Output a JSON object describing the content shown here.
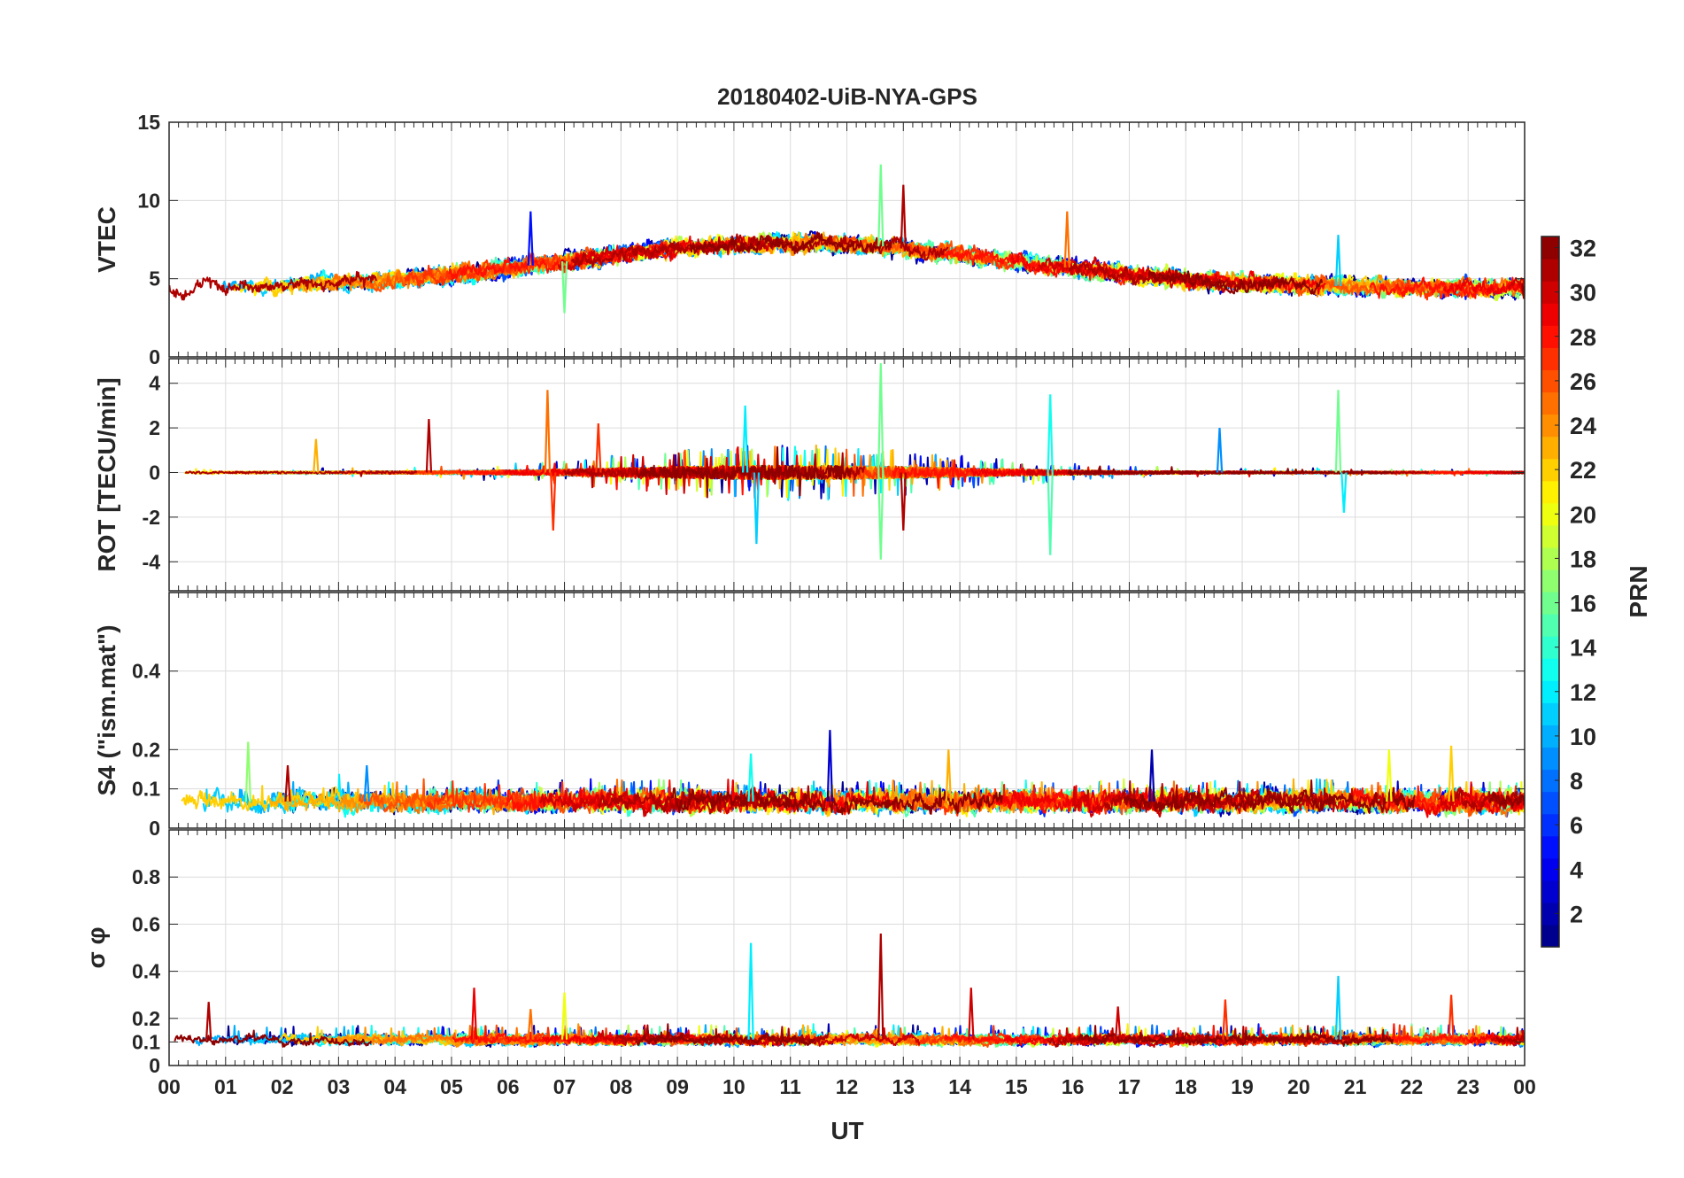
{
  "chart_data": {
    "type": "line",
    "title": "20180402-UiB-NYA-GPS",
    "xlabel": "UT",
    "x_tick_labels": [
      "00",
      "01",
      "02",
      "03",
      "04",
      "05",
      "06",
      "07",
      "08",
      "09",
      "10",
      "11",
      "12",
      "13",
      "14",
      "15",
      "16",
      "17",
      "18",
      "19",
      "20",
      "21",
      "22",
      "23",
      "00"
    ],
    "xlim": [
      0,
      24
    ],
    "panels": [
      {
        "name": "vtec",
        "ylabel": "VTEC",
        "ylim": [
          0,
          15
        ],
        "yticks": [
          0,
          5,
          10,
          15
        ],
        "ytick_labels": [
          "0",
          "5",
          "10",
          "15"
        ],
        "baseline": 4.4,
        "day_amp": 2.9,
        "noise": 0.45,
        "spike_scale": 1.8,
        "spikes": [
          {
            "t": 12.6,
            "v": 12.3,
            "prn": 16
          },
          {
            "t": 13.0,
            "v": 11.0,
            "prn": 31
          },
          {
            "t": 15.9,
            "v": 9.3,
            "prn": 25
          },
          {
            "t": 6.4,
            "v": 9.3,
            "prn": 5
          },
          {
            "t": 20.7,
            "v": 7.8,
            "prn": 11
          },
          {
            "t": 7.0,
            "v": 2.8,
            "prn": 16
          }
        ]
      },
      {
        "name": "rot",
        "ylabel": "ROT [TECU/min]",
        "ylim": [
          -5.3,
          5.1
        ],
        "yticks": [
          -4,
          -2,
          0,
          2,
          4
        ],
        "ytick_labels": [
          "-4",
          "-2",
          "0",
          "2",
          "4"
        ],
        "baseline": 0,
        "day_amp": 0,
        "noise": 0.12,
        "spike_scale": 1.5,
        "spikes": [
          {
            "t": 12.6,
            "v": 4.9,
            "prn": 16
          },
          {
            "t": 12.6,
            "v": -3.9,
            "prn": 16
          },
          {
            "t": 6.7,
            "v": 3.7,
            "prn": 25
          },
          {
            "t": 6.8,
            "v": -2.6,
            "prn": 27
          },
          {
            "t": 15.6,
            "v": 3.5,
            "prn": 13
          },
          {
            "t": 15.6,
            "v": -3.7,
            "prn": 15
          },
          {
            "t": 20.7,
            "v": 3.7,
            "prn": 16
          },
          {
            "t": 20.8,
            "v": -1.8,
            "prn": 12
          },
          {
            "t": 10.2,
            "v": 3.0,
            "prn": 12
          },
          {
            "t": 10.4,
            "v": -3.2,
            "prn": 11
          },
          {
            "t": 4.6,
            "v": 2.4,
            "prn": 31
          },
          {
            "t": 13.0,
            "v": -2.6,
            "prn": 31
          },
          {
            "t": 7.6,
            "v": 2.2,
            "prn": 27
          },
          {
            "t": 18.6,
            "v": 2.0,
            "prn": 9
          },
          {
            "t": 2.6,
            "v": 1.5,
            "prn": 23
          }
        ]
      },
      {
        "name": "s4",
        "ylabel": "S4 (\"ism.mat\")",
        "ylim": [
          0,
          0.6
        ],
        "yticks": [
          0,
          0.1,
          0.2,
          0.4
        ],
        "ytick_labels": [
          "0",
          "0.1",
          "0.2",
          "0.4"
        ],
        "baseline": 0.068,
        "day_amp": 0,
        "noise": 0.022,
        "spike_scale": 0.05,
        "spikes": [
          {
            "t": 11.7,
            "v": 0.25,
            "prn": 3
          },
          {
            "t": 1.4,
            "v": 0.22,
            "prn": 17
          },
          {
            "t": 22.7,
            "v": 0.21,
            "prn": 22
          },
          {
            "t": 17.4,
            "v": 0.2,
            "prn": 2
          },
          {
            "t": 13.8,
            "v": 0.2,
            "prn": 23
          },
          {
            "t": 21.6,
            "v": 0.2,
            "prn": 20
          },
          {
            "t": 10.3,
            "v": 0.19,
            "prn": 13
          },
          {
            "t": 2.1,
            "v": 0.16,
            "prn": 31
          },
          {
            "t": 3.5,
            "v": 0.16,
            "prn": 9
          }
        ]
      },
      {
        "name": "sigma_phi",
        "ylabel": "σ φ",
        "ylim": [
          0,
          1
        ],
        "yticks": [
          0,
          0.1,
          0.2,
          0.4,
          0.6,
          0.8
        ],
        "ytick_labels": [
          "0",
          "0.1",
          "0.2",
          "0.4",
          "0.6",
          "0.8"
        ],
        "baseline": 0.11,
        "day_amp": 0,
        "noise": 0.018,
        "spike_scale": 0.06,
        "spikes": [
          {
            "t": 12.6,
            "v": 0.56,
            "prn": 31
          },
          {
            "t": 10.3,
            "v": 0.52,
            "prn": 12
          },
          {
            "t": 20.7,
            "v": 0.38,
            "prn": 11
          },
          {
            "t": 5.4,
            "v": 0.33,
            "prn": 29
          },
          {
            "t": 14.2,
            "v": 0.33,
            "prn": 30
          },
          {
            "t": 22.7,
            "v": 0.3,
            "prn": 27
          },
          {
            "t": 7.0,
            "v": 0.31,
            "prn": 20
          },
          {
            "t": 18.7,
            "v": 0.28,
            "prn": 27
          },
          {
            "t": 0.7,
            "v": 0.27,
            "prn": 31
          },
          {
            "t": 16.8,
            "v": 0.25,
            "prn": 30
          },
          {
            "t": 6.4,
            "v": 0.24,
            "prn": 25
          }
        ]
      }
    ],
    "colorbar": {
      "label": "PRN",
      "range": [
        1,
        32
      ],
      "ticks": [
        2,
        4,
        6,
        8,
        10,
        12,
        14,
        16,
        18,
        20,
        22,
        24,
        26,
        28,
        30,
        32
      ],
      "tick_labels": [
        "2",
        "4",
        "6",
        "8",
        "10",
        "12",
        "14",
        "16",
        "18",
        "20",
        "22",
        "24",
        "26",
        "28",
        "30",
        "32"
      ],
      "colormap": "jet"
    },
    "series_note": "32 GPS satellite tracks (PRN 1-32), colored by PRN"
  }
}
